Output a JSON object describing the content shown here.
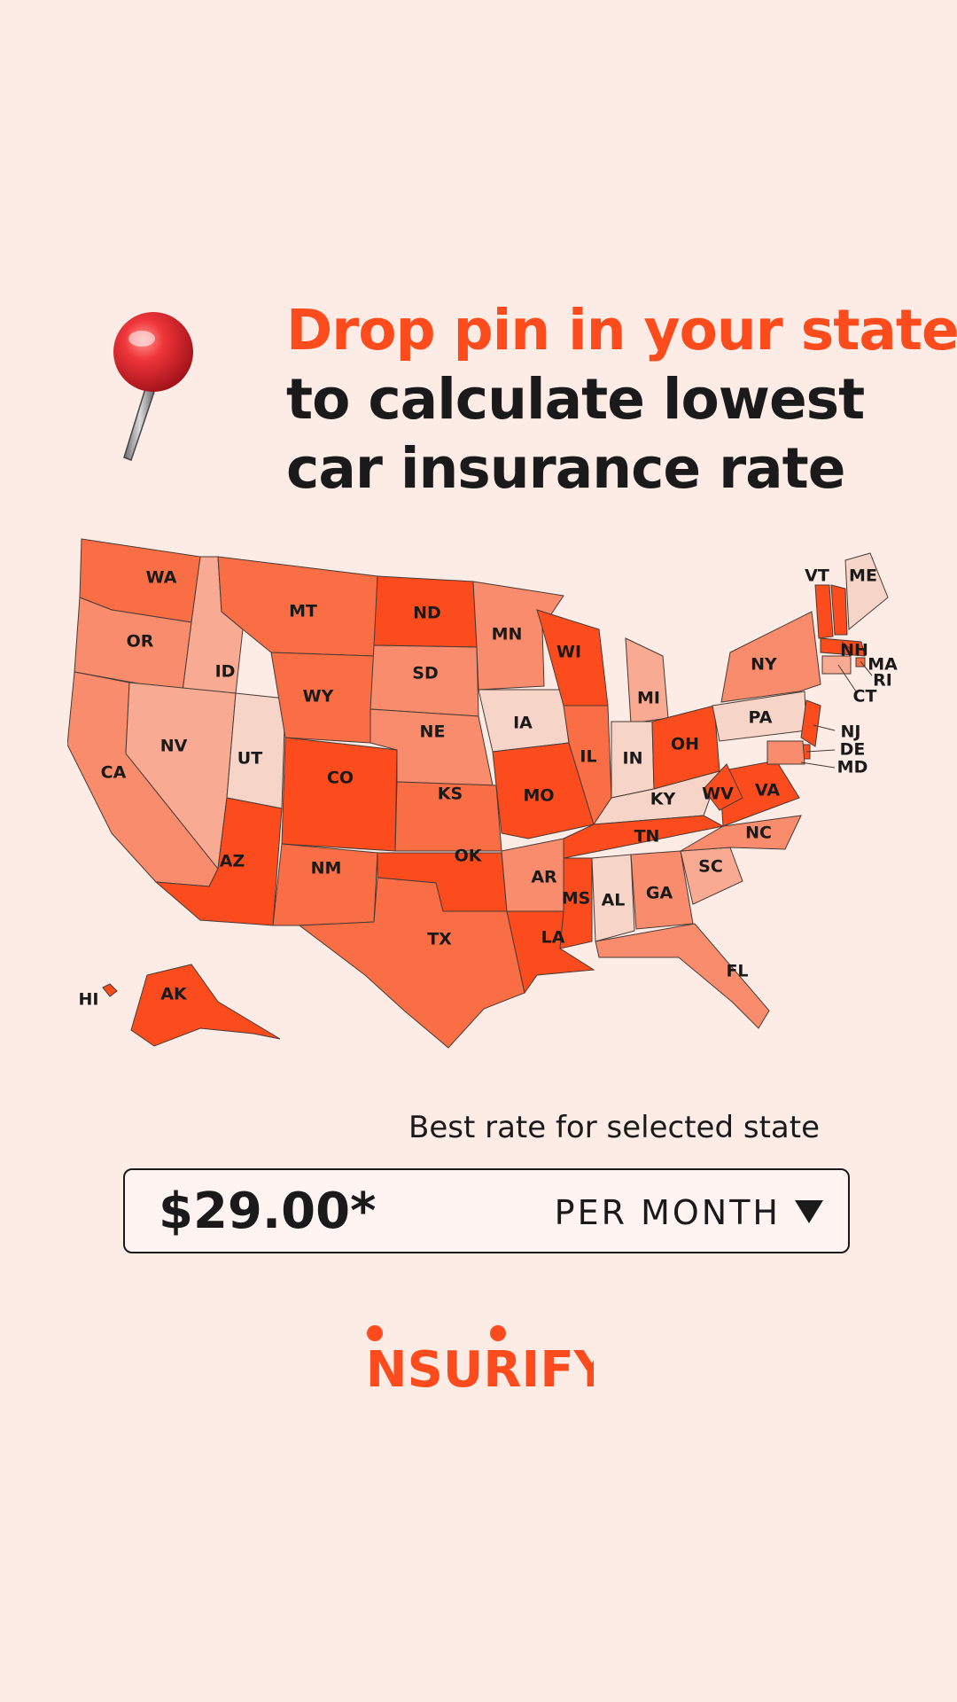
{
  "headline": {
    "line1": "Drop pin in your state",
    "line2": "to calculate lowest",
    "line3": "car insurance rate"
  },
  "pin": {
    "icon": "pushpin-icon"
  },
  "map": {
    "color_scale": [
      "#f6d4c8",
      "#f8aa92",
      "#f98c6c",
      "#fa6e45",
      "#fc4c1d"
    ],
    "states": [
      {
        "code": "WA",
        "level": 3
      },
      {
        "code": "OR",
        "level": 2
      },
      {
        "code": "CA",
        "level": 2
      },
      {
        "code": "ID",
        "level": 1
      },
      {
        "code": "NV",
        "level": 1
      },
      {
        "code": "UT",
        "level": 0
      },
      {
        "code": "AZ",
        "level": 4
      },
      {
        "code": "MT",
        "level": 3
      },
      {
        "code": "WY",
        "level": 3
      },
      {
        "code": "CO",
        "level": 4
      },
      {
        "code": "NM",
        "level": 3
      },
      {
        "code": "ND",
        "level": 4
      },
      {
        "code": "SD",
        "level": 2
      },
      {
        "code": "NE",
        "level": 2
      },
      {
        "code": "KS",
        "level": 3
      },
      {
        "code": "OK",
        "level": 4
      },
      {
        "code": "TX",
        "level": 3
      },
      {
        "code": "MN",
        "level": 2
      },
      {
        "code": "IA",
        "level": 0
      },
      {
        "code": "MO",
        "level": 4
      },
      {
        "code": "AR",
        "level": 2
      },
      {
        "code": "LA",
        "level": 4
      },
      {
        "code": "WI",
        "level": 4
      },
      {
        "code": "IL",
        "level": 3
      },
      {
        "code": "MI",
        "level": 1
      },
      {
        "code": "IN",
        "level": 0
      },
      {
        "code": "OH",
        "level": 4
      },
      {
        "code": "KY",
        "level": 0
      },
      {
        "code": "TN",
        "level": 4
      },
      {
        "code": "MS",
        "level": 4
      },
      {
        "code": "AL",
        "level": 0
      },
      {
        "code": "GA",
        "level": 2
      },
      {
        "code": "FL",
        "level": 2
      },
      {
        "code": "SC",
        "level": 1
      },
      {
        "code": "NC",
        "level": 2
      },
      {
        "code": "VA",
        "level": 4
      },
      {
        "code": "WV",
        "level": 4
      },
      {
        "code": "PA",
        "level": 0
      },
      {
        "code": "NY",
        "level": 2
      },
      {
        "code": "VT",
        "level": 4
      },
      {
        "code": "NH",
        "level": 4
      },
      {
        "code": "ME",
        "level": 0
      },
      {
        "code": "MA",
        "level": 4
      },
      {
        "code": "RI",
        "level": 3
      },
      {
        "code": "CT",
        "level": 1
      },
      {
        "code": "NJ",
        "level": 4
      },
      {
        "code": "DE",
        "level": 4
      },
      {
        "code": "MD",
        "level": 2
      },
      {
        "code": "AK",
        "level": 4
      },
      {
        "code": "HI",
        "level": 4
      }
    ]
  },
  "rate": {
    "caption": "Best rate for selected state",
    "value": "$29.00*",
    "period": "PER MONTH",
    "dropdown_icon": "caret-down-icon"
  },
  "brand": {
    "name": "INSURIFY"
  }
}
